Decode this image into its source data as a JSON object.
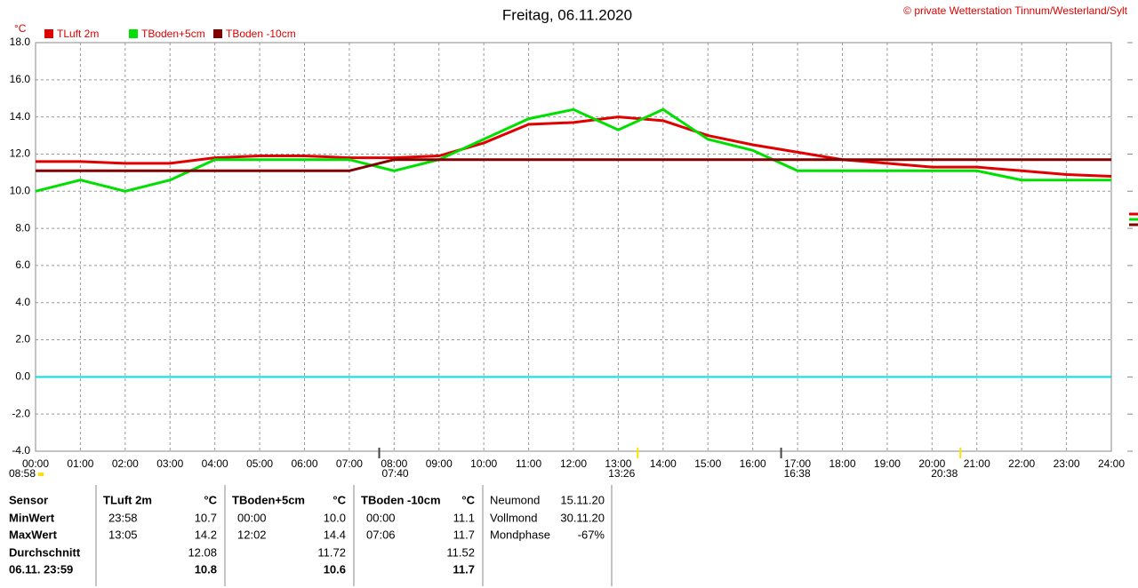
{
  "chart_data": {
    "type": "line",
    "title": "Freitag, 06.11.2020",
    "copyright": "© private Wetterstation Tinnum/Westerland/Sylt",
    "y_unit": "°C",
    "x": [
      0,
      1,
      2,
      3,
      4,
      5,
      6,
      7,
      8,
      9,
      10,
      11,
      12,
      13,
      14,
      15,
      16,
      17,
      18,
      19,
      20,
      21,
      22,
      23,
      24
    ],
    "xlim": [
      0,
      24
    ],
    "xticks": [
      {
        "value": 0,
        "label": "00:00"
      },
      {
        "value": 1,
        "label": "01:00"
      },
      {
        "value": 2,
        "label": "02:00"
      },
      {
        "value": 3,
        "label": "03:00"
      },
      {
        "value": 4,
        "label": "04:00"
      },
      {
        "value": 5,
        "label": "05:00"
      },
      {
        "value": 6,
        "label": "06:00"
      },
      {
        "value": 7,
        "label": "07:00"
      },
      {
        "value": 8,
        "label": "08:00"
      },
      {
        "value": 9,
        "label": "09:00"
      },
      {
        "value": 10,
        "label": "10:00"
      },
      {
        "value": 11,
        "label": "11:00"
      },
      {
        "value": 12,
        "label": "12:00"
      },
      {
        "value": 13,
        "label": "13:00"
      },
      {
        "value": 14,
        "label": "14:00"
      },
      {
        "value": 15,
        "label": "15:00"
      },
      {
        "value": 16,
        "label": "16:00"
      },
      {
        "value": 17,
        "label": "17:00"
      },
      {
        "value": 18,
        "label": "18:00"
      },
      {
        "value": 19,
        "label": "19:00"
      },
      {
        "value": 20,
        "label": "20:00"
      },
      {
        "value": 21,
        "label": "21:00"
      },
      {
        "value": 22,
        "label": "22:00"
      },
      {
        "value": 23,
        "label": "23:00"
      },
      {
        "value": 24,
        "label": "24:00"
      }
    ],
    "ylim": [
      -4,
      18
    ],
    "yticks": [
      {
        "value": -4,
        "label": "-4.0"
      },
      {
        "value": -2,
        "label": "-2.0"
      },
      {
        "value": 0,
        "label": "0.0"
      },
      {
        "value": 2,
        "label": "2.0"
      },
      {
        "value": 4,
        "label": "4.0"
      },
      {
        "value": 6,
        "label": "6.0"
      },
      {
        "value": 8,
        "label": "8.0"
      },
      {
        "value": 10,
        "label": "10.0"
      },
      {
        "value": 12,
        "label": "12.0"
      },
      {
        "value": 14,
        "label": "14.0"
      },
      {
        "value": 16,
        "label": "16.0"
      },
      {
        "value": 18,
        "label": "18.0"
      }
    ],
    "grid": true,
    "series": [
      {
        "name": "TLuft 2m",
        "color": "#e00000",
        "values": [
          11.6,
          11.6,
          11.5,
          11.5,
          11.8,
          11.9,
          11.9,
          11.8,
          11.8,
          11.9,
          12.6,
          13.6,
          13.7,
          14.0,
          13.8,
          13.0,
          12.5,
          12.1,
          11.7,
          11.5,
          11.3,
          11.3,
          11.1,
          10.9,
          10.8
        ]
      },
      {
        "name": "TBoden+5cm",
        "color": "#00e000",
        "values": [
          10.0,
          10.6,
          10.0,
          10.6,
          11.7,
          11.7,
          11.7,
          11.7,
          11.1,
          11.7,
          12.8,
          13.9,
          14.4,
          13.3,
          14.4,
          12.8,
          12.2,
          11.1,
          11.1,
          11.1,
          11.1,
          11.1,
          10.6,
          10.6,
          10.6
        ]
      },
      {
        "name": "TBoden -10cm",
        "color": "#800000",
        "values": [
          11.1,
          11.1,
          11.1,
          11.1,
          11.1,
          11.1,
          11.1,
          11.1,
          11.7,
          11.7,
          11.7,
          11.7,
          11.7,
          11.7,
          11.7,
          11.7,
          11.7,
          11.7,
          11.7,
          11.7,
          11.7,
          11.7,
          11.7,
          11.7,
          11.7
        ]
      }
    ]
  },
  "astro": {
    "left_note": "08:58",
    "markers": [
      "07:40",
      "13:26",
      "16:38",
      "20:38"
    ]
  },
  "table": {
    "sensor": {
      "header": "Sensor",
      "rows": [
        "MinWert",
        "MaxWert",
        "Durchschnitt",
        "06.11. 23:59"
      ]
    },
    "groups": [
      {
        "name": "TLuft 2m",
        "unit": "°C",
        "rows": [
          [
            "23:58",
            "10.7"
          ],
          [
            "13:05",
            "14.2"
          ],
          [
            null,
            "12.08"
          ],
          [
            null,
            "10.8"
          ]
        ]
      },
      {
        "name": "TBoden+5cm",
        "unit": "°C",
        "rows": [
          [
            "00:00",
            "10.0"
          ],
          [
            "12:02",
            "14.4"
          ],
          [
            null,
            "11.72"
          ],
          [
            null,
            "10.6"
          ]
        ]
      },
      {
        "name": "TBoden -10cm",
        "unit": "°C",
        "rows": [
          [
            "00:00",
            "11.1"
          ],
          [
            "07:06",
            "11.7"
          ],
          [
            null,
            "11.52"
          ],
          [
            null,
            "11.7"
          ]
        ]
      }
    ],
    "moon": [
      [
        "Neumond",
        "15.11.20"
      ],
      [
        "Vollmond",
        "30.11.20"
      ],
      [
        "Mondphase",
        "-67%"
      ]
    ]
  }
}
